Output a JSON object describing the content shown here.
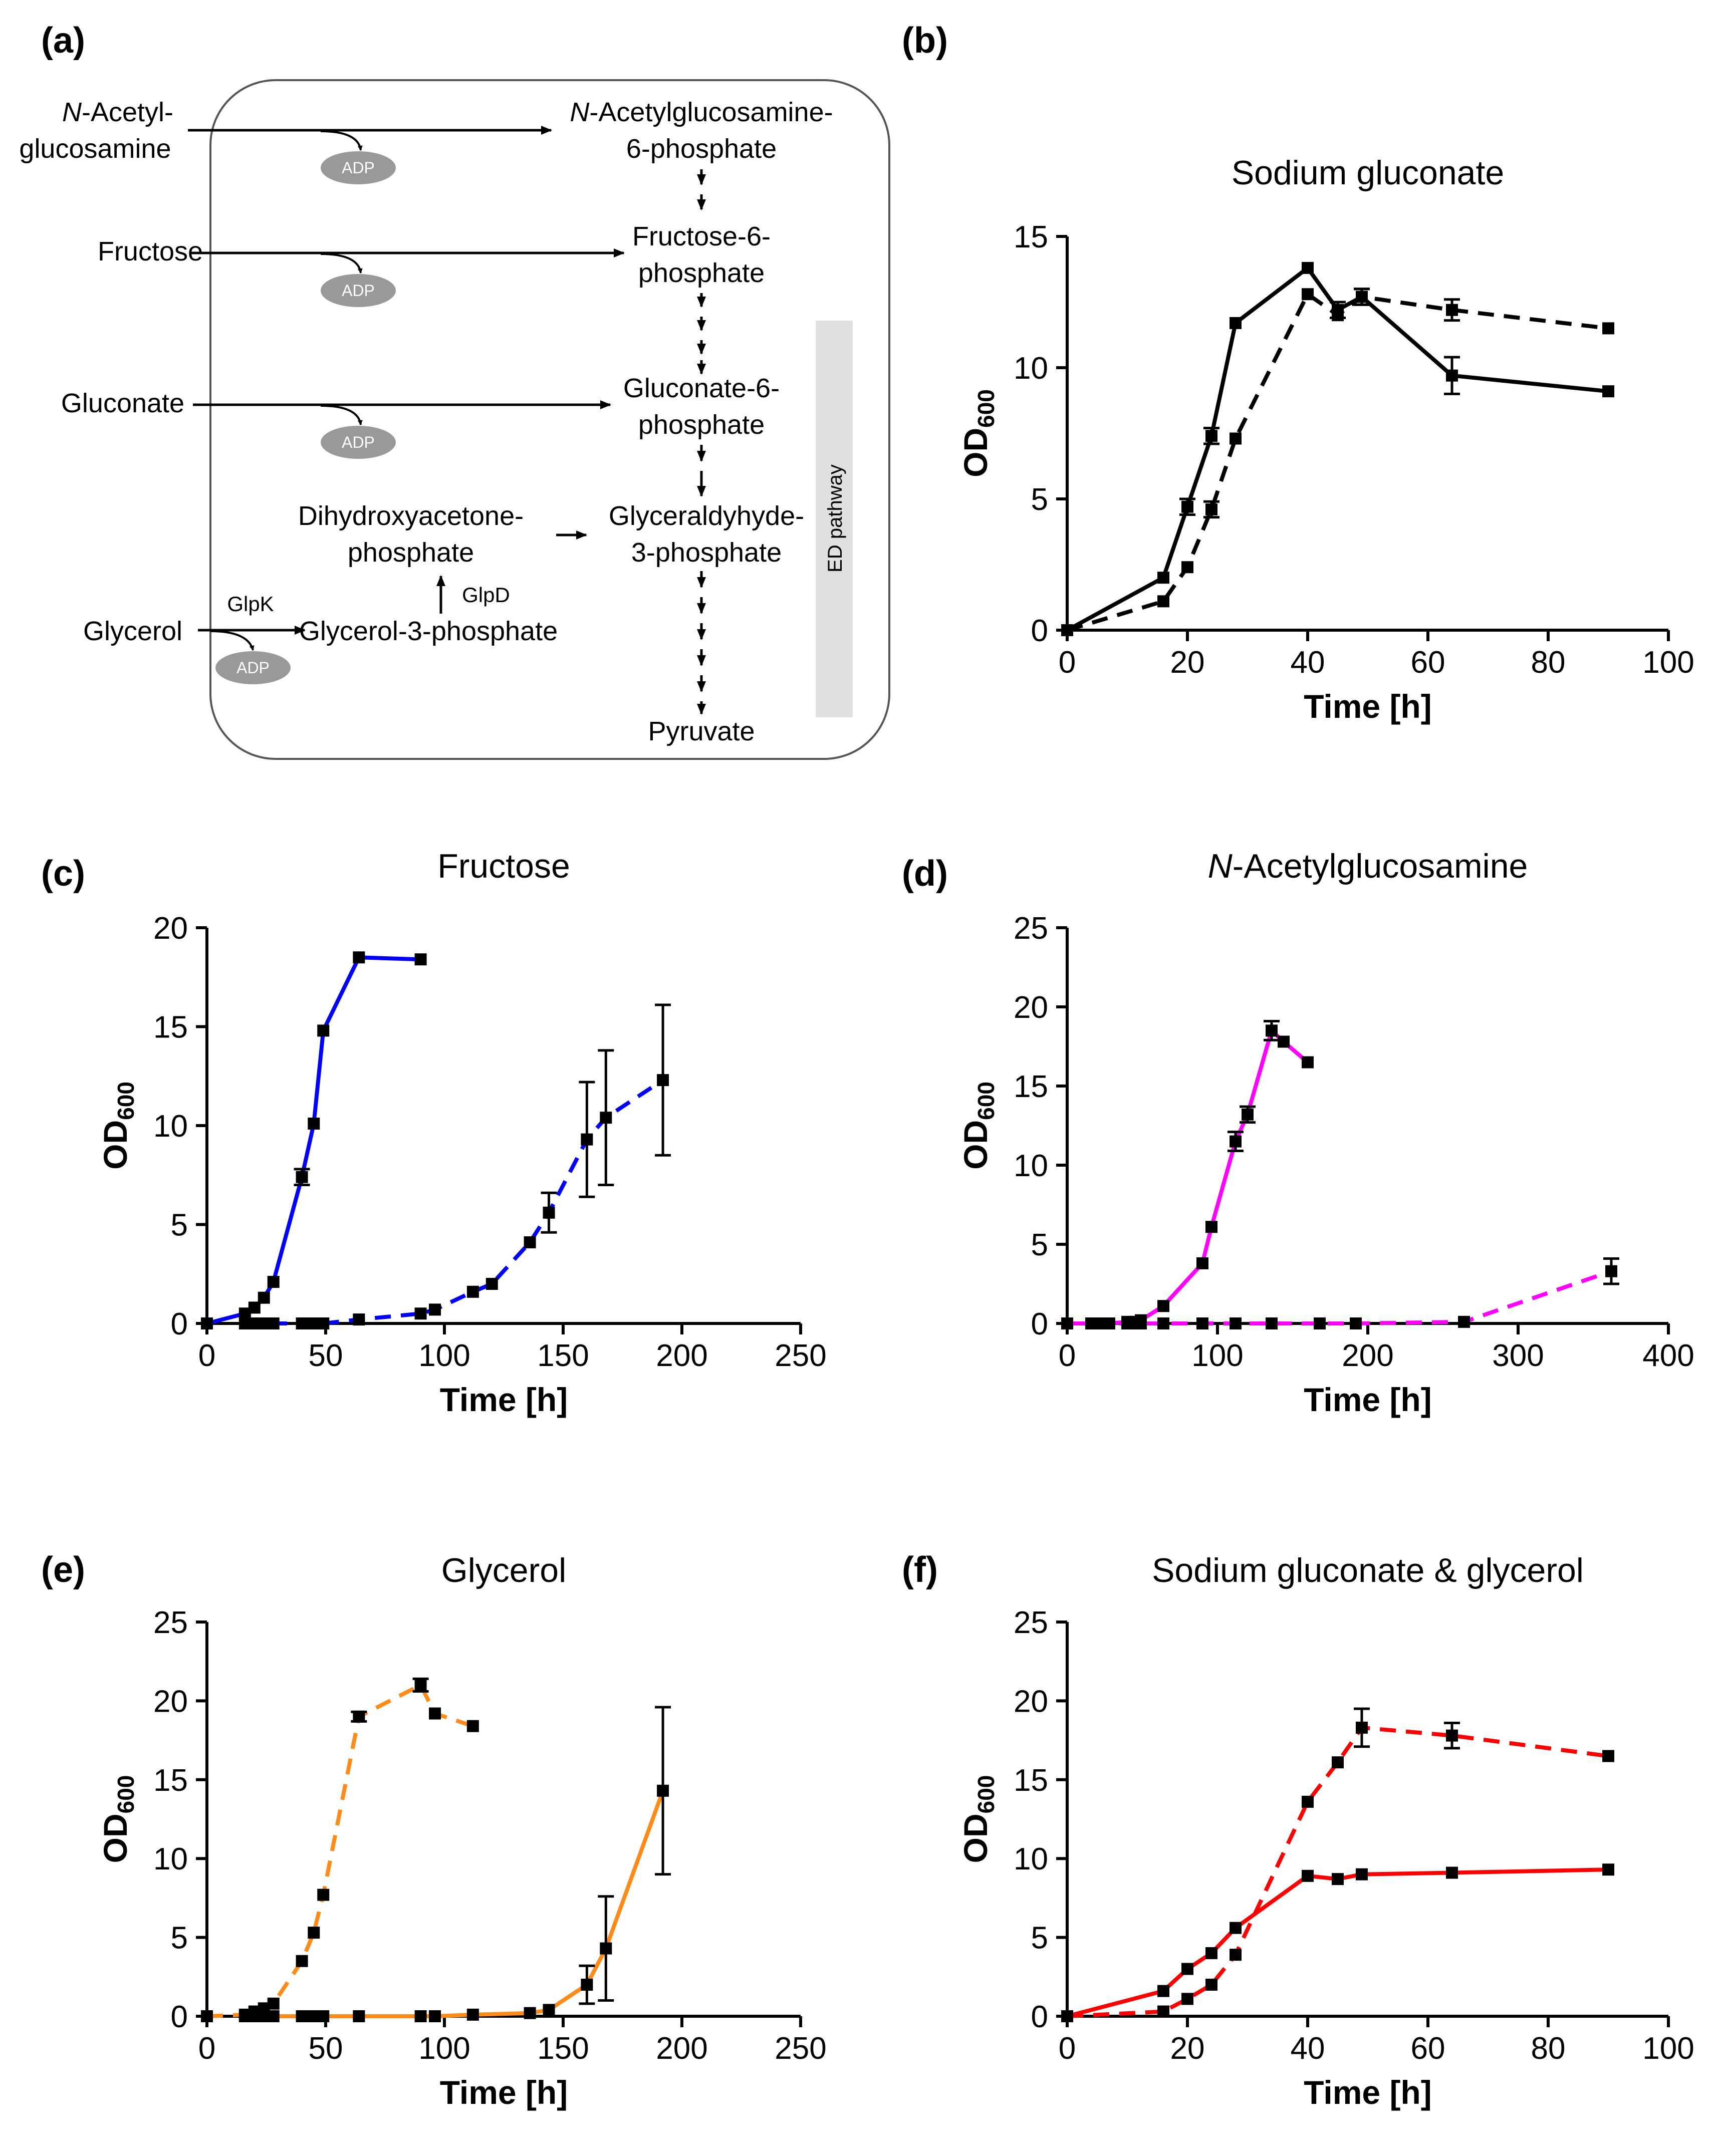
{
  "panel_labels": {
    "a": "(a)",
    "b": "(b)",
    "c": "(c)",
    "d": "(d)",
    "e": "(e)",
    "f": "(f)"
  },
  "diagram": {
    "substrates": {
      "nag_line1": "-Acetyl-",
      "nag_n": "N",
      "nag_line2": "glucosamine",
      "fructose": "Fructose",
      "gluconate": "Gluconate",
      "glycerol": "Glycerol"
    },
    "products": {
      "nag6p_n": "N",
      "nag6p_line1": "-Acetylglucosamine-",
      "nag6p_line2": "6-phosphate",
      "f6p_line1": "Fructose-6-",
      "f6p_line2": "phosphate",
      "g6p_line1": "Gluconate-6-",
      "g6p_line2": "phosphate",
      "dhap_line1": "Dihydroxyacetone-",
      "dhap_line2": "phosphate",
      "gap_line1": "Glyceraldyhyde-",
      "gap_line2": "3-phosphate",
      "g3p": "Glycerol-3-phosphate",
      "pyruvate": "Pyruvate"
    },
    "enzymes": {
      "glpk": "GlpK",
      "glpd": "GlpD"
    },
    "adp": "ADP",
    "ed_pathway": "ED pathway",
    "colors": {
      "adp_fill": "#999999",
      "ed_bar": "#e0e0e0",
      "cell_border": "#555555"
    }
  },
  "ylabel": {
    "main": "OD",
    "sub": "600"
  },
  "chart_data": [
    {
      "id": "b",
      "type": "line",
      "title": "Sodium gluconate",
      "xlabel": "Time [h]",
      "xlim": [
        0,
        100
      ],
      "xticks": [
        0,
        20,
        40,
        60,
        80,
        100
      ],
      "ylim": [
        0,
        15
      ],
      "yticks": [
        0,
        5,
        10,
        15
      ],
      "color": "#000000",
      "series": [
        {
          "name": "solid",
          "style": "solid",
          "x": [
            0,
            16,
            20,
            24,
            28,
            40,
            45,
            49,
            64,
            90
          ],
          "y": [
            0,
            2.0,
            4.7,
            7.4,
            11.7,
            13.8,
            12.2,
            12.7,
            9.7,
            9.1
          ],
          "err": [
            0,
            0.1,
            0.3,
            0.3,
            0.1,
            0.1,
            0.3,
            0.3,
            0.7,
            0.1
          ]
        },
        {
          "name": "dashed",
          "style": "dashed",
          "x": [
            0,
            16,
            20,
            24,
            28,
            40,
            45,
            49,
            64,
            90
          ],
          "y": [
            0,
            1.1,
            2.4,
            4.6,
            7.3,
            12.8,
            12.0,
            12.7,
            12.2,
            11.5
          ],
          "err": [
            0,
            0.1,
            0.1,
            0.3,
            0.1,
            0.1,
            0.1,
            0.3,
            0.4,
            0.1
          ]
        }
      ]
    },
    {
      "id": "c",
      "type": "line",
      "title": "Fructose",
      "xlabel": "Time [h]",
      "xlim": [
        0,
        250
      ],
      "xticks": [
        0,
        50,
        100,
        150,
        200,
        250
      ],
      "ylim": [
        0,
        20
      ],
      "yticks": [
        0,
        5,
        10,
        15,
        20
      ],
      "color": "#0000ff",
      "series": [
        {
          "name": "solid",
          "style": "solid",
          "x": [
            0,
            16,
            20,
            24,
            28,
            40,
            45,
            49,
            64,
            90
          ],
          "y": [
            0,
            0.5,
            0.8,
            1.3,
            2.1,
            7.4,
            10.1,
            14.8,
            18.5,
            18.4
          ],
          "err": [
            0,
            0.1,
            0.1,
            0.1,
            0.1,
            0.4,
            0.1,
            0.1,
            0.1,
            0.1
          ]
        },
        {
          "name": "dashed",
          "style": "dashed",
          "x": [
            16,
            20,
            24,
            28,
            40,
            45,
            49,
            64,
            90,
            96,
            112,
            120,
            136,
            144,
            160,
            168,
            192
          ],
          "y": [
            0,
            0,
            0,
            0,
            0,
            0,
            0,
            0.2,
            0.5,
            0.7,
            1.6,
            2.0,
            4.1,
            5.6,
            9.3,
            10.4,
            12.3
          ],
          "err": [
            0,
            0,
            0,
            0,
            0,
            0,
            0,
            0.1,
            0.1,
            0.1,
            0.1,
            0.1,
            0.1,
            1.0,
            2.9,
            3.4,
            3.8
          ]
        }
      ]
    },
    {
      "id": "d",
      "type": "line",
      "title": "-Acetylglucosamine",
      "title_prefix": "N",
      "xlabel": "Time [h]",
      "xlim": [
        0,
        400
      ],
      "xticks": [
        0,
        100,
        200,
        300,
        400
      ],
      "ylim": [
        0,
        25
      ],
      "yticks": [
        0,
        5,
        10,
        15,
        20,
        25
      ],
      "color": "#ff00ff",
      "series": [
        {
          "name": "solid",
          "style": "solid",
          "x": [
            0,
            16,
            20,
            24,
            28,
            40,
            45,
            49,
            64,
            90,
            96,
            112,
            120,
            136,
            144,
            160
          ],
          "y": [
            0,
            0,
            0,
            0,
            0,
            0.1,
            0.1,
            0.2,
            1.1,
            3.8,
            6.1,
            11.5,
            13.2,
            18.5,
            17.8,
            16.5
          ],
          "err": [
            0,
            0,
            0,
            0,
            0,
            0,
            0,
            0,
            0.1,
            0.1,
            0.1,
            0.6,
            0.5,
            0.6,
            0.2,
            0.2
          ]
        },
        {
          "name": "dashed",
          "style": "dashed",
          "x": [
            0,
            16,
            20,
            24,
            28,
            40,
            45,
            49,
            64,
            90,
            112,
            136,
            168,
            192,
            264,
            362
          ],
          "y": [
            0,
            0,
            0,
            0,
            0,
            0,
            0,
            0,
            0,
            0,
            0,
            0,
            0,
            0,
            0.1,
            3.3
          ],
          "err": [
            0,
            0,
            0,
            0,
            0,
            0,
            0,
            0,
            0,
            0,
            0,
            0,
            0,
            0,
            0,
            0.8
          ]
        }
      ]
    },
    {
      "id": "e",
      "type": "line",
      "title": "Glycerol",
      "xlabel": "Time [h]",
      "xlim": [
        0,
        250
      ],
      "xticks": [
        0,
        50,
        100,
        150,
        200,
        250
      ],
      "ylim": [
        0,
        25
      ],
      "yticks": [
        0,
        5,
        10,
        15,
        20,
        25
      ],
      "color": "#ff8c1a",
      "series": [
        {
          "name": "dashed",
          "style": "dashed",
          "x": [
            0,
            16,
            20,
            24,
            28,
            40,
            45,
            49,
            64,
            90,
            96,
            112
          ],
          "y": [
            0,
            0.1,
            0.3,
            0.5,
            0.8,
            3.5,
            5.3,
            7.7,
            19.0,
            21.0,
            19.2,
            18.4
          ],
          "err": [
            0,
            0,
            0,
            0.1,
            0.1,
            0.1,
            0.1,
            0.1,
            0.3,
            0.4,
            0.2,
            0.1
          ]
        },
        {
          "name": "solid",
          "style": "solid",
          "x": [
            16,
            20,
            24,
            28,
            40,
            45,
            49,
            64,
            90,
            96,
            112,
            136,
            144,
            160,
            168,
            192
          ],
          "y": [
            0,
            0,
            0,
            0,
            0,
            0,
            0,
            0,
            0,
            0,
            0.1,
            0.2,
            0.4,
            2.0,
            4.3,
            14.3
          ],
          "err": [
            0,
            0,
            0,
            0,
            0,
            0,
            0,
            0,
            0,
            0,
            0,
            0,
            0.1,
            1.2,
            3.3,
            5.3
          ]
        }
      ]
    },
    {
      "id": "f",
      "type": "line",
      "title": "Sodium gluconate & glycerol",
      "xlabel": "Time [h]",
      "xlim": [
        0,
        100
      ],
      "xticks": [
        0,
        20,
        40,
        60,
        80,
        100
      ],
      "ylim": [
        0,
        25
      ],
      "yticks": [
        0,
        5,
        10,
        15,
        20,
        25
      ],
      "color": "#ff0000",
      "series": [
        {
          "name": "solid",
          "style": "solid",
          "x": [
            0,
            16,
            20,
            24,
            28,
            40,
            45,
            49,
            64,
            90
          ],
          "y": [
            0,
            1.6,
            3.0,
            4.0,
            5.6,
            8.9,
            8.7,
            9.0,
            9.1,
            9.3
          ],
          "err": [
            0,
            0.1,
            0.1,
            0.1,
            0.1,
            0.1,
            0.1,
            0.1,
            0.1,
            0.1
          ]
        },
        {
          "name": "dashed",
          "style": "dashed",
          "x": [
            0,
            16,
            20,
            24,
            28,
            40,
            45,
            49,
            64,
            90
          ],
          "y": [
            0,
            0.3,
            1.1,
            2.0,
            3.9,
            13.6,
            16.1,
            18.3,
            17.8,
            16.5
          ],
          "err": [
            0,
            0,
            0.1,
            0.1,
            0.1,
            0.1,
            0.1,
            1.2,
            0.8,
            0.1
          ]
        }
      ]
    }
  ]
}
